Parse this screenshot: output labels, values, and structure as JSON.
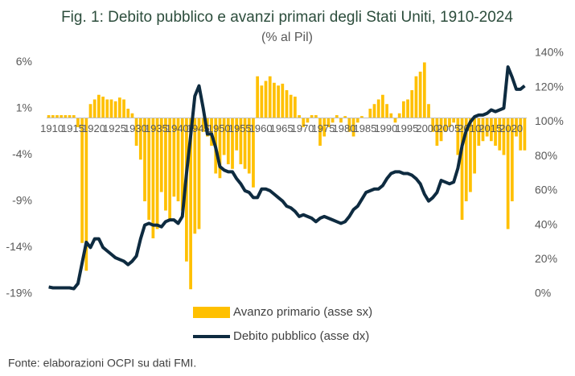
{
  "chart_data": {
    "type": "bar",
    "title": "Fig. 1: Debito pubblico e avanzi primari degli Stati Uniti, 1910-2024",
    "subtitle": "(% al Pil)",
    "source": "Fonte: elaborazioni OCPI su dati FMI.",
    "categories": [
      "1910",
      null,
      null,
      null,
      null,
      "1915",
      null,
      null,
      null,
      null,
      "1920",
      null,
      null,
      null,
      null,
      "1925",
      null,
      null,
      null,
      null,
      "1930",
      null,
      null,
      null,
      null,
      "1935",
      null,
      null,
      null,
      null,
      "1940",
      null,
      null,
      null,
      null,
      "1945",
      null,
      null,
      null,
      null,
      "1950",
      null,
      null,
      null,
      null,
      "1955",
      null,
      null,
      null,
      null,
      "1960",
      null,
      null,
      null,
      null,
      "1965",
      null,
      null,
      null,
      null,
      "1970",
      null,
      null,
      null,
      null,
      "1975",
      null,
      null,
      null,
      null,
      "1980",
      null,
      null,
      null,
      null,
      "1985",
      null,
      null,
      null,
      null,
      "1990",
      null,
      null,
      null,
      null,
      "1995",
      null,
      null,
      null,
      null,
      "2000",
      null,
      null,
      null,
      null,
      "2005",
      null,
      null,
      null,
      null,
      "2010",
      null,
      null,
      null,
      null,
      "2015",
      null,
      null,
      null,
      null,
      "2020",
      null,
      null,
      null,
      null
    ],
    "series": [
      {
        "name": "Avanzo primario (asse sx)",
        "type": "bar",
        "color": "#ffc000",
        "values": [
          0.3,
          0.3,
          0.3,
          0.3,
          0.3,
          0.3,
          0.3,
          -1,
          -13.5,
          -16.5,
          1.5,
          2,
          2.5,
          2.3,
          2,
          2,
          1.8,
          2.2,
          2,
          1,
          0.5,
          -3,
          -4.5,
          -9,
          -11,
          -13,
          -12,
          -8,
          -10,
          -11,
          -8.5,
          -9,
          -10,
          -15.5,
          -18.5,
          -12.5,
          -12,
          -1.5,
          -2,
          -3,
          -6,
          -6.5,
          -4,
          -5,
          -5.5,
          -3.5,
          -5,
          -5.5,
          -6,
          -7.5,
          4.5,
          3.5,
          4,
          4.5,
          3.8,
          3.5,
          3.7,
          3,
          2.5,
          2.3,
          0.3,
          -1,
          -0.5,
          0.3,
          0.3,
          -3,
          -2,
          -1,
          -0.5,
          0.3,
          -0.5,
          0.2,
          -1.5,
          -2,
          -0.5,
          0.2,
          0,
          1,
          1.5,
          2,
          2.5,
          1.5,
          0.5,
          -0.5,
          0.5,
          1.8,
          2,
          3,
          4.5,
          5,
          6,
          1.5,
          -1.5,
          -3,
          -2.5,
          -1.5,
          -1,
          -0.5,
          -4,
          -11,
          -9,
          -8,
          -6,
          -3,
          -2.5,
          -2,
          -2.5,
          -3,
          -3.5,
          -4,
          -12,
          -9,
          -2,
          -3.5,
          -3.5
        ]
      },
      {
        "name": "Debito pubblico (asse dx)",
        "type": "line",
        "axis": "y2",
        "color": "#0e2b40",
        "values": [
          4,
          3.5,
          3.5,
          3.5,
          3.5,
          3.5,
          3,
          6,
          18,
          30,
          27,
          32,
          32,
          27,
          25,
          23,
          21,
          20,
          19,
          17,
          19,
          22,
          32,
          40,
          41,
          40,
          40,
          39,
          42,
          43,
          43,
          41,
          45,
          70,
          92,
          115,
          121,
          108,
          93,
          93,
          85,
          74,
          72,
          71,
          71,
          67,
          64,
          60,
          59,
          56,
          56,
          61,
          61,
          60,
          58,
          56,
          54,
          51,
          50,
          48,
          45,
          46,
          45,
          44,
          42,
          44,
          45,
          44,
          43,
          42,
          41,
          42,
          45,
          49,
          51,
          55,
          59,
          60,
          61,
          61,
          63,
          67,
          70,
          71,
          71,
          70,
          70,
          69,
          67,
          64,
          58,
          54,
          56,
          59,
          66,
          65,
          64,
          65,
          73,
          86,
          95,
          100,
          103,
          104,
          104,
          105,
          107,
          106,
          107,
          108,
          132,
          126,
          119,
          119,
          121
        ]
      }
    ],
    "ylim": [
      -19,
      7
    ],
    "yticks": [
      {
        "value": -19,
        "label": "-19%"
      },
      {
        "value": -14,
        "label": "-14%"
      },
      {
        "value": -9,
        "label": "-9%"
      },
      {
        "value": -4,
        "label": "-4%"
      },
      {
        "value": 1,
        "label": "1%"
      },
      {
        "value": 6,
        "label": "6%"
      }
    ],
    "y2lim": [
      0,
      140
    ],
    "y2ticks": [
      {
        "value": 0,
        "label": "0%"
      },
      {
        "value": 20,
        "label": "20%"
      },
      {
        "value": 40,
        "label": "40%"
      },
      {
        "value": 60,
        "label": "60%"
      },
      {
        "value": 80,
        "label": "80%"
      },
      {
        "value": 100,
        "label": "100%"
      },
      {
        "value": 120,
        "label": "120%"
      },
      {
        "value": 140,
        "label": "140%"
      }
    ]
  }
}
